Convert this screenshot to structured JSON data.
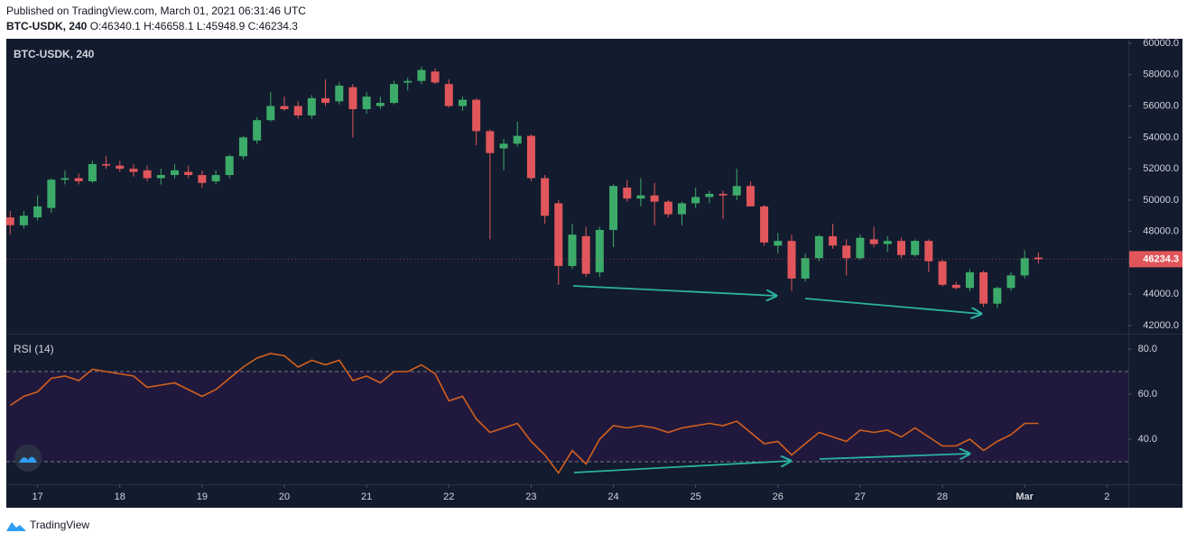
{
  "header": {
    "published": "Published on TradingView.com, March 01, 2021 06:31:46 UTC",
    "ohlc_labels": [
      "O:",
      "H:",
      "L:",
      "C:"
    ]
  },
  "footer": "TradingView",
  "chart_data": [
    {
      "type": "candlestick",
      "title": "BTC-USDK, 240",
      "up_color": "#3cab6a",
      "down_color": "#e0565b",
      "x": [
        16.667,
        16.833,
        17,
        17.167,
        17.333,
        17.5,
        17.667,
        17.833,
        18,
        18.167,
        18.333,
        18.5,
        18.667,
        18.833,
        19,
        19.167,
        19.333,
        19.5,
        19.667,
        19.833,
        20,
        20.167,
        20.333,
        20.5,
        20.667,
        20.833,
        21,
        21.167,
        21.333,
        21.5,
        21.667,
        21.833,
        22,
        22.167,
        22.333,
        22.5,
        22.667,
        22.833,
        23,
        23.167,
        23.333,
        23.5,
        23.667,
        23.833,
        24,
        24.167,
        24.333,
        24.5,
        24.667,
        24.833,
        25,
        25.167,
        25.333,
        25.5,
        25.667,
        25.833,
        26,
        26.167,
        26.333,
        26.5,
        26.667,
        26.833,
        27,
        27.167,
        27.333,
        27.5,
        27.667,
        27.833,
        28,
        28.167,
        28.333,
        28.5,
        28.667,
        28.833,
        29,
        29.167
      ],
      "open": [
        48900,
        48400,
        48900,
        49500,
        51300,
        51400,
        51200,
        52300,
        52200,
        52000,
        51900,
        51400,
        51600,
        51800,
        51600,
        51200,
        51600,
        52800,
        53800,
        55100,
        56000,
        56000,
        55400,
        56500,
        56300,
        57200,
        55800,
        56000,
        56200,
        57500,
        57600,
        58200,
        57400,
        56000,
        56400,
        54400,
        53300,
        53600,
        54100,
        51400,
        49800,
        45800,
        47700,
        45400,
        48100,
        50800,
        50100,
        50300,
        49900,
        49100,
        49800,
        50200,
        50400,
        50300,
        50900,
        49600,
        47100,
        47400,
        45000,
        46300,
        47700,
        47100,
        46300,
        47500,
        47200,
        47400,
        46500,
        47400,
        46100,
        44600,
        44400,
        45400,
        43400,
        44400,
        45200,
        46340.1
      ],
      "high": [
        49300,
        49300,
        50300,
        51400,
        51900,
        51700,
        52500,
        52800,
        52500,
        52300,
        52200,
        52000,
        52300,
        52200,
        51900,
        51900,
        52900,
        54100,
        55300,
        56900,
        56600,
        56300,
        56700,
        57700,
        57500,
        57400,
        56900,
        56600,
        57600,
        57800,
        58500,
        58400,
        57700,
        56600,
        56500,
        54500,
        53900,
        55000,
        54200,
        51600,
        50000,
        48500,
        48300,
        48300,
        51000,
        51300,
        51400,
        51100,
        50000,
        49900,
        50800,
        50600,
        50600,
        52000,
        51200,
        49700,
        47900,
        47800,
        46600,
        47800,
        48500,
        47500,
        47800,
        48300,
        47700,
        47600,
        47500,
        47500,
        46200,
        44800,
        45600,
        45500,
        44500,
        45400,
        46800,
        46658.1
      ],
      "low": [
        47800,
        48200,
        48700,
        49200,
        51000,
        51000,
        51100,
        52000,
        51800,
        51500,
        51200,
        51000,
        51400,
        51400,
        50800,
        51000,
        51400,
        52600,
        53600,
        55000,
        55700,
        55200,
        55200,
        56000,
        56100,
        54000,
        55500,
        55800,
        56100,
        57000,
        57400,
        57400,
        55900,
        55700,
        53500,
        47500,
        51900,
        53400,
        51200,
        48500,
        44600,
        45600,
        45100,
        45100,
        47000,
        49900,
        49600,
        48400,
        48900,
        48400,
        49500,
        49800,
        48800,
        50000,
        49600,
        47100,
        46600,
        44200,
        44800,
        46100,
        46900,
        45200,
        46200,
        47000,
        46700,
        46300,
        46400,
        45400,
        44500,
        44300,
        44200,
        43200,
        43100,
        44200,
        45000,
        45948.9
      ],
      "close": [
        48400,
        49000,
        49600,
        51300,
        51400,
        51200,
        52300,
        52200,
        52000,
        51800,
        51400,
        51600,
        51900,
        51600,
        51100,
        51600,
        52800,
        54000,
        55100,
        56000,
        55800,
        55400,
        56500,
        56200,
        57300,
        55800,
        56600,
        56200,
        57400,
        57600,
        58300,
        57500,
        56000,
        56400,
        54400,
        53000,
        53600,
        54100,
        51400,
        49000,
        45800,
        47800,
        45300,
        48100,
        50900,
        50100,
        50300,
        49900,
        49100,
        49800,
        50200,
        50400,
        50300,
        50900,
        49600,
        47300,
        47400,
        45000,
        46300,
        47700,
        47100,
        46300,
        47600,
        47200,
        47400,
        46500,
        47400,
        46100,
        44600,
        44400,
        45400,
        43400,
        44400,
        45200,
        46300,
        46234.3
      ],
      "xlim": [
        16.62,
        30.26
      ],
      "xticks": [
        17,
        18,
        19,
        20,
        21,
        22,
        23,
        24,
        25,
        26,
        27,
        28,
        {
          "value": 29,
          "label": "Mar"
        },
        {
          "value": 30,
          "label": "2"
        }
      ],
      "ylim": [
        41485,
        60288
      ],
      "yticks": [
        {
          "value": 42000,
          "label": "42000.0"
        },
        {
          "value": 44000,
          "label": "44000.0"
        },
        {
          "value": 46000,
          "label": "46000.0"
        },
        {
          "value": 48000,
          "label": "48000.0"
        },
        {
          "value": 50000,
          "label": "50000.0"
        },
        {
          "value": 52000,
          "label": "52000.0"
        },
        {
          "value": 54000,
          "label": "54000.0"
        },
        {
          "value": 56000,
          "label": "56000.0"
        },
        {
          "value": 58000,
          "label": "58000.0"
        },
        {
          "value": 60000,
          "label": "60000.0"
        }
      ]
    },
    {
      "type": "line",
      "title": "RSI (14)",
      "color": "#d2601e",
      "values": [
        55,
        59,
        61,
        67,
        68,
        66,
        71,
        70,
        69,
        68,
        63,
        64,
        65,
        62,
        59,
        62,
        67,
        72,
        76,
        78,
        77,
        72,
        75,
        73,
        75,
        66,
        68,
        65,
        70,
        70,
        73,
        69,
        57,
        59,
        49,
        43,
        45,
        47,
        39,
        33,
        25,
        35,
        29,
        40,
        46,
        45,
        46,
        45,
        43,
        45,
        46,
        47,
        46,
        48,
        43,
        38,
        39,
        33,
        38,
        43,
        41,
        39,
        44,
        43,
        44,
        41,
        45,
        41,
        37,
        37,
        40,
        35,
        39,
        42,
        47,
        47
      ],
      "bands": [
        30,
        70
      ],
      "band_color": "#21193d",
      "ylim": [
        20,
        86.4
      ],
      "yticks": [
        {
          "value": 40,
          "label": "40.0"
        },
        {
          "value": 60,
          "label": "60.0"
        },
        {
          "value": 80,
          "label": "80.0"
        }
      ]
    }
  ]
}
